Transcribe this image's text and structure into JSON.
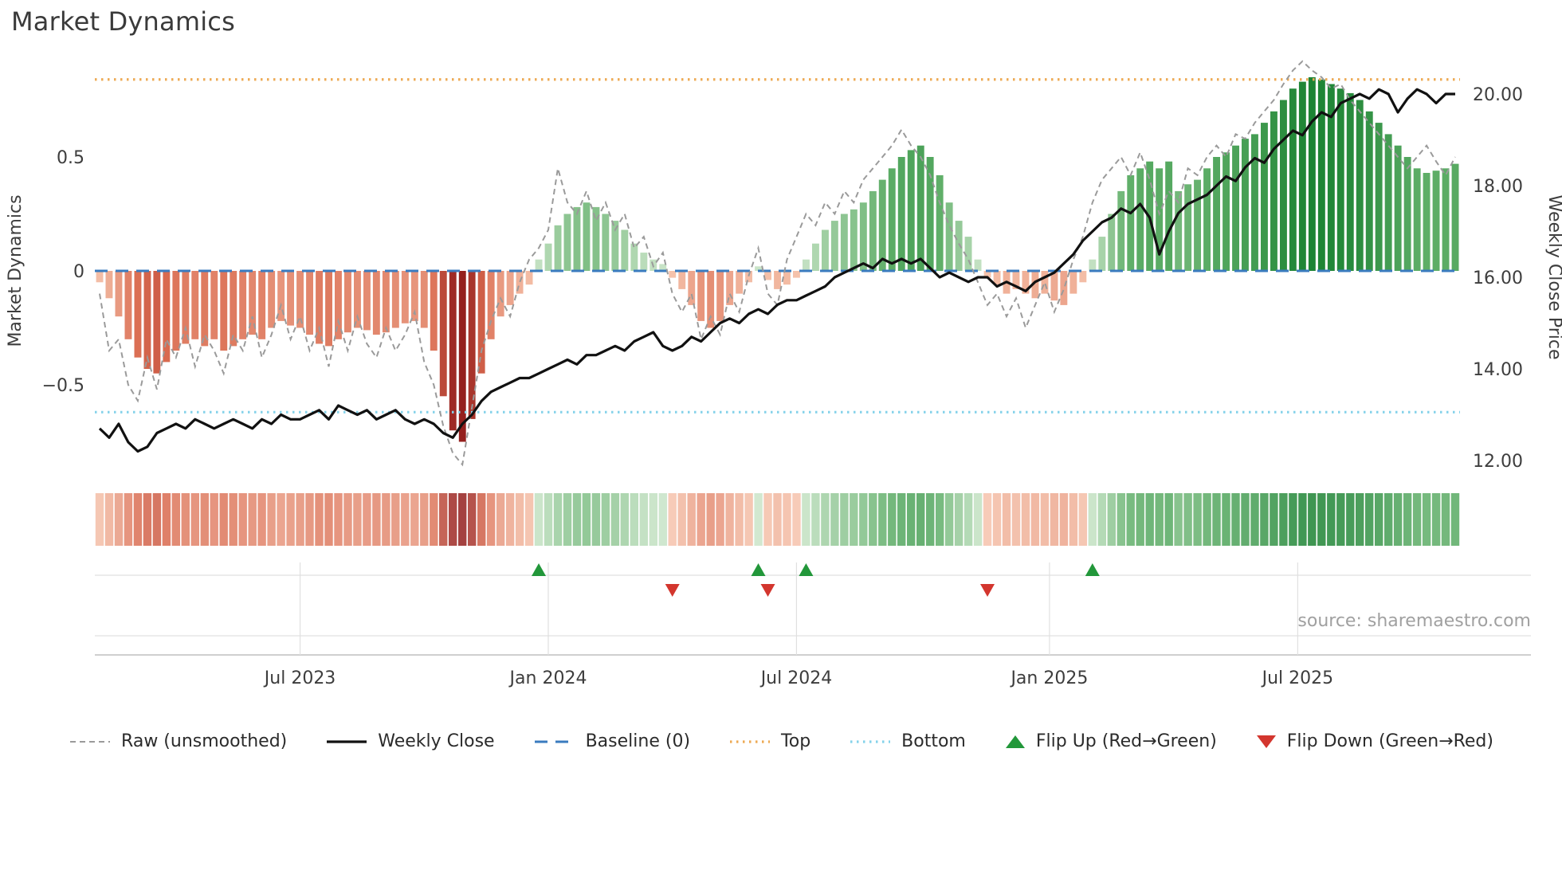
{
  "title": "Market Dynamics",
  "source_text": "source: sharemaestro.com",
  "colors": {
    "baseline": "#3a7bbf",
    "top": "#edaa54",
    "bottom": "#85d2ea",
    "raw": "#9a9a9a",
    "weekly_close": "#111111",
    "flip_up": "#22973a",
    "flip_down": "#d3362e",
    "neg_ramp": [
      "#f7c9b2",
      "#d96a4f",
      "#8a1517"
    ],
    "pos_ramp": [
      "#cfe7cd",
      "#5fae68",
      "#1d8434"
    ],
    "tick_text": "#3d3d3d",
    "lane_grid": "#e0e0e0",
    "axis_spine": "#bfbfbf"
  },
  "legend": {
    "items": [
      {
        "label": "Raw (unsmoothed)",
        "kind": "line",
        "dash": "7 5",
        "width": 2,
        "color": "#9a9a9a"
      },
      {
        "label": "Weekly Close",
        "kind": "line",
        "dash": "",
        "width": 3.2,
        "color": "#111111"
      },
      {
        "label": "Baseline (0)",
        "kind": "line",
        "dash": "16 10",
        "width": 3,
        "color": "#3a7bbf"
      },
      {
        "label": "Top",
        "kind": "line",
        "dash": "2.5 5.5",
        "width": 3.2,
        "color": "#edaa54"
      },
      {
        "label": "Bottom",
        "kind": "line",
        "dash": "2.5 5.5",
        "width": 3.2,
        "color": "#85d2ea"
      },
      {
        "label": "Flip Up (Red→Green)",
        "kind": "triangle-up",
        "color": "#22973a"
      },
      {
        "label": "Flip Down (Green→Red)",
        "kind": "triangle-down",
        "color": "#d3362e"
      }
    ]
  },
  "chart_data": {
    "type": "bar",
    "subtype": "oscillator-bars with overlaid lines, heatmap strip and flip markers",
    "title": "Market Dynamics",
    "left_axis": {
      "label": "Market Dynamics",
      "ticks": [
        {
          "v": 0.5,
          "label": "0.5"
        },
        {
          "v": 0,
          "label": "0"
        },
        {
          "v": -0.5,
          "label": "−0.5"
        }
      ],
      "range": [
        -0.95,
        0.95
      ]
    },
    "right_axis": {
      "label": "Weekly Close Price",
      "ticks": [
        {
          "v": 20,
          "label": "20.00"
        },
        {
          "v": 18,
          "label": "18.00"
        },
        {
          "v": 16,
          "label": "16.00"
        },
        {
          "v": 14,
          "label": "14.00"
        },
        {
          "v": 12,
          "label": "12.00"
        }
      ],
      "range": [
        11.5,
        20.6
      ]
    },
    "x_ticks": [
      {
        "week": 21,
        "label": "Jul 2023"
      },
      {
        "week": 47,
        "label": "Jan 2024"
      },
      {
        "week": 73,
        "label": "Jul 2024"
      },
      {
        "week": 99.5,
        "label": "Jan 2025"
      },
      {
        "week": 125.5,
        "label": "Jul 2025"
      }
    ],
    "baseline_level": 0,
    "top_level": 0.84,
    "bottom_level": -0.62,
    "series": {
      "dynamics": [
        -0.05,
        -0.12,
        -0.2,
        -0.3,
        -0.38,
        -0.43,
        -0.45,
        -0.4,
        -0.35,
        -0.32,
        -0.3,
        -0.33,
        -0.3,
        -0.35,
        -0.33,
        -0.3,
        -0.28,
        -0.3,
        -0.25,
        -0.22,
        -0.24,
        -0.25,
        -0.28,
        -0.32,
        -0.33,
        -0.3,
        -0.27,
        -0.25,
        -0.26,
        -0.28,
        -0.27,
        -0.25,
        -0.23,
        -0.22,
        -0.25,
        -0.35,
        -0.55,
        -0.7,
        -0.75,
        -0.65,
        -0.45,
        -0.3,
        -0.2,
        -0.15,
        -0.1,
        -0.06,
        0.05,
        0.12,
        0.2,
        0.25,
        0.28,
        0.3,
        0.28,
        0.25,
        0.22,
        0.18,
        0.12,
        0.08,
        0.05,
        0.03,
        -0.03,
        -0.08,
        -0.15,
        -0.22,
        -0.25,
        -0.22,
        -0.15,
        -0.1,
        -0.05,
        0.02,
        -0.04,
        -0.08,
        -0.06,
        -0.03,
        0.05,
        0.12,
        0.18,
        0.22,
        0.25,
        0.27,
        0.3,
        0.35,
        0.4,
        0.45,
        0.5,
        0.53,
        0.55,
        0.5,
        0.42,
        0.3,
        0.22,
        0.15,
        0.05,
        -0.03,
        -0.06,
        -0.1,
        -0.08,
        -0.1,
        -0.12,
        -0.1,
        -0.13,
        -0.15,
        -0.1,
        -0.05,
        0.05,
        0.15,
        0.25,
        0.35,
        0.42,
        0.45,
        0.48,
        0.45,
        0.48,
        0.35,
        0.38,
        0.4,
        0.45,
        0.5,
        0.52,
        0.55,
        0.58,
        0.6,
        0.65,
        0.7,
        0.75,
        0.8,
        0.83,
        0.85,
        0.84,
        0.82,
        0.8,
        0.78,
        0.75,
        0.7,
        0.65,
        0.6,
        0.55,
        0.5,
        0.45,
        0.43,
        0.44,
        0.45,
        0.47
      ],
      "raw": [
        -0.1,
        -0.35,
        -0.3,
        -0.5,
        -0.57,
        -0.38,
        -0.52,
        -0.3,
        -0.38,
        -0.25,
        -0.42,
        -0.28,
        -0.35,
        -0.45,
        -0.28,
        -0.35,
        -0.2,
        -0.38,
        -0.28,
        -0.15,
        -0.3,
        -0.2,
        -0.35,
        -0.25,
        -0.42,
        -0.22,
        -0.35,
        -0.2,
        -0.32,
        -0.38,
        -0.25,
        -0.35,
        -0.28,
        -0.18,
        -0.4,
        -0.5,
        -0.68,
        -0.8,
        -0.85,
        -0.6,
        -0.35,
        -0.22,
        -0.12,
        -0.2,
        -0.05,
        0.05,
        0.1,
        0.18,
        0.45,
        0.3,
        0.25,
        0.35,
        0.22,
        0.3,
        0.18,
        0.25,
        0.1,
        0.15,
        0.02,
        0.08,
        -0.1,
        -0.18,
        -0.1,
        -0.3,
        -0.2,
        -0.28,
        -0.1,
        -0.18,
        -0.02,
        0.1,
        -0.1,
        -0.15,
        0.05,
        0.15,
        0.25,
        0.2,
        0.3,
        0.25,
        0.35,
        0.3,
        0.4,
        0.45,
        0.5,
        0.55,
        0.62,
        0.55,
        0.5,
        0.42,
        0.3,
        0.2,
        0.12,
        0.05,
        -0.05,
        -0.15,
        -0.1,
        -0.2,
        -0.12,
        -0.25,
        -0.15,
        -0.05,
        -0.18,
        -0.08,
        0.05,
        0.15,
        0.3,
        0.4,
        0.45,
        0.5,
        0.42,
        0.52,
        0.4,
        0.25,
        0.35,
        0.3,
        0.45,
        0.42,
        0.5,
        0.55,
        0.5,
        0.6,
        0.58,
        0.65,
        0.7,
        0.75,
        0.82,
        0.88,
        0.92,
        0.88,
        0.85,
        0.8,
        0.82,
        0.75,
        0.7,
        0.65,
        0.6,
        0.55,
        0.5,
        0.45,
        0.5,
        0.55,
        0.48,
        0.42,
        0.5
      ],
      "weekly_close": [
        12.7,
        12.5,
        12.8,
        12.4,
        12.2,
        12.3,
        12.6,
        12.7,
        12.8,
        12.7,
        12.9,
        12.8,
        12.7,
        12.8,
        12.9,
        12.8,
        12.7,
        12.9,
        12.8,
        13.0,
        12.9,
        12.9,
        13.0,
        13.1,
        12.9,
        13.2,
        13.1,
        13.0,
        13.1,
        12.9,
        13.0,
        13.1,
        12.9,
        12.8,
        12.9,
        12.8,
        12.6,
        12.5,
        12.8,
        13.0,
        13.3,
        13.5,
        13.6,
        13.7,
        13.8,
        13.8,
        13.9,
        14.0,
        14.1,
        14.2,
        14.1,
        14.3,
        14.3,
        14.4,
        14.5,
        14.4,
        14.6,
        14.7,
        14.8,
        14.5,
        14.4,
        14.5,
        14.7,
        14.6,
        14.8,
        15.0,
        15.1,
        15.0,
        15.2,
        15.3,
        15.2,
        15.4,
        15.5,
        15.5,
        15.6,
        15.7,
        15.8,
        16.0,
        16.1,
        16.2,
        16.3,
        16.2,
        16.4,
        16.3,
        16.4,
        16.3,
        16.4,
        16.2,
        16.0,
        16.1,
        16.0,
        15.9,
        16.0,
        16.0,
        15.8,
        15.9,
        15.8,
        15.7,
        15.9,
        16.0,
        16.1,
        16.3,
        16.5,
        16.8,
        17.0,
        17.2,
        17.3,
        17.5,
        17.4,
        17.6,
        17.3,
        16.5,
        17.0,
        17.4,
        17.6,
        17.7,
        17.8,
        18.0,
        18.2,
        18.1,
        18.4,
        18.6,
        18.5,
        18.8,
        19.0,
        19.2,
        19.1,
        19.4,
        19.6,
        19.5,
        19.8,
        19.9,
        20.0,
        19.9,
        20.1,
        20.0,
        19.6,
        19.9,
        20.1,
        20.0,
        19.8,
        20.0,
        20.0
      ]
    },
    "flip_up_weeks": [
      46,
      69,
      74,
      104
    ],
    "flip_down_weeks": [
      60,
      70,
      93
    ]
  }
}
